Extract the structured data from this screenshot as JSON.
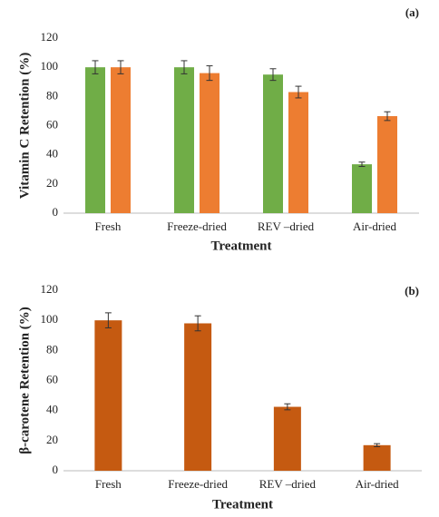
{
  "chart_data": [
    {
      "type": "bar",
      "panel_label": "(a)",
      "y_label": "Vitamin C Retention (%)",
      "x_label": "Treatment",
      "categories": [
        "Fresh",
        "Freeze-dried",
        "REV –dried",
        "Air-dried"
      ],
      "series": [
        {
          "color": "#70ad47",
          "values": [
            100,
            100,
            95,
            33.5
          ],
          "errors": [
            4.5,
            4.5,
            4,
            1.5
          ]
        },
        {
          "color": "#ed7d31",
          "values": [
            100,
            96,
            83,
            66.5
          ],
          "errors": [
            4.5,
            5,
            4,
            3
          ]
        }
      ],
      "ylim": [
        0,
        120
      ],
      "yticks": [
        0,
        20,
        40,
        60,
        80,
        100,
        120
      ],
      "grid": false
    },
    {
      "type": "bar",
      "panel_label": "(b)",
      "y_label": "β-carotene Retention (%)",
      "x_label": "Treatment",
      "categories": [
        "Fresh",
        "Freeze-dried",
        "REV –dried",
        "Air-dried"
      ],
      "series": [
        {
          "color": "#c55a11",
          "values": [
            100,
            98,
            42.5,
            17
          ],
          "errors": [
            5,
            5,
            2,
            1
          ]
        }
      ],
      "ylim": [
        0,
        120
      ],
      "yticks": [
        0,
        20,
        40,
        60,
        80,
        100,
        120
      ],
      "grid": false
    }
  ]
}
